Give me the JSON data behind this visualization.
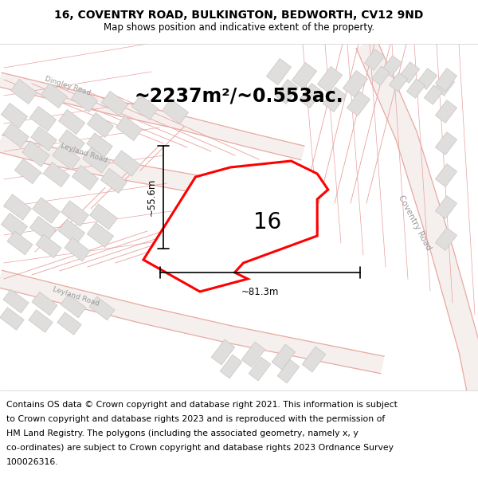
{
  "title": "16, COVENTRY ROAD, BULKINGTON, BEDWORTH, CV12 9ND",
  "subtitle": "Map shows position and indicative extent of the property.",
  "footer_lines": [
    "Contains OS data © Crown copyright and database right 2021. This information is subject",
    "to Crown copyright and database rights 2023 and is reproduced with the permission of",
    "HM Land Registry. The polygons (including the associated geometry, namely x, y",
    "co-ordinates) are subject to Crown copyright and database rights 2023 Ordnance Survey",
    "100026316."
  ],
  "area_text": "~2237m²/~0.553ac.",
  "property_number": "16",
  "dim_width": "~81.3m",
  "dim_height": "~55.6m",
  "road_coventry": "Coventry Road",
  "road_dingley": "Dingley Road",
  "road_leyland1": "Leyland Road",
  "road_leyland2": "Leyland Road",
  "bg_color": "#ffffff",
  "map_bg": "#ffffff",
  "building_face": "#e0dedd",
  "building_edge": "#c8c6c4",
  "road_line_color": "#e8a8a0",
  "road_fill_color": "#f0e0dc",
  "road_gray_color": "#d0cdcb",
  "title_fontsize": 10,
  "subtitle_fontsize": 8.5,
  "footer_fontsize": 7.8,
  "area_fontsize": 17,
  "number_fontsize": 20
}
